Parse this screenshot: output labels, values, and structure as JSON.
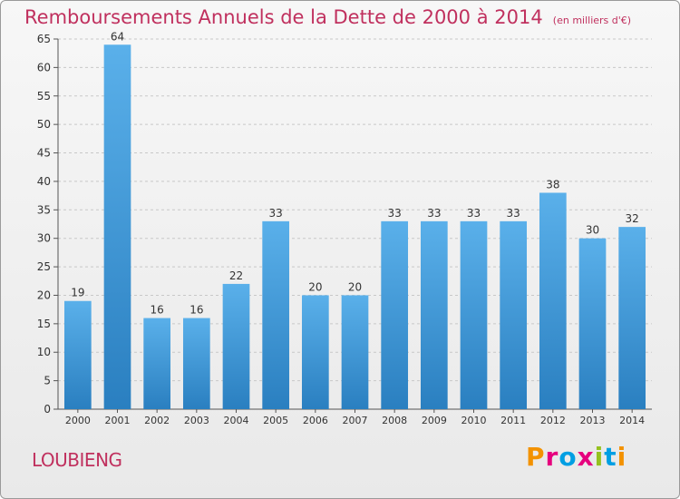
{
  "header": {
    "title": "Remboursements Annuels de la Dette de 2000 à 2014",
    "subtitle": "(en milliers d'€)"
  },
  "footer": {
    "commune": "LOUBIENG",
    "logo_text": "Proxiti"
  },
  "colors": {
    "title": "#c0305e",
    "bar_top": "#5ab0ea",
    "bar_bottom": "#2a7fc0",
    "logo_letters": [
      "#f39200",
      "#e6007e",
      "#009fe3",
      "#e6007e",
      "#95c11f",
      "#009fe3",
      "#f39200"
    ]
  },
  "chart_data": {
    "type": "bar",
    "categories": [
      "2000",
      "2001",
      "2002",
      "2003",
      "2004",
      "2005",
      "2006",
      "2007",
      "2008",
      "2009",
      "2010",
      "2011",
      "2012",
      "2013",
      "2014"
    ],
    "values": [
      19,
      64,
      16,
      16,
      22,
      33,
      20,
      20,
      33,
      33,
      33,
      33,
      38,
      30,
      32
    ],
    "data_labels": [
      "19",
      "64",
      "16",
      "16",
      "22",
      "33",
      "20",
      "20",
      "33",
      "33",
      "33",
      "33",
      "38",
      "30",
      "32"
    ],
    "yticks": [
      0,
      5,
      10,
      15,
      20,
      25,
      30,
      35,
      40,
      45,
      50,
      55,
      60,
      65
    ],
    "ylim": [
      0,
      65
    ],
    "grid": true,
    "title": "Remboursements Annuels de la Dette de 2000 à 2014",
    "xlabel": "",
    "ylabel": ""
  }
}
